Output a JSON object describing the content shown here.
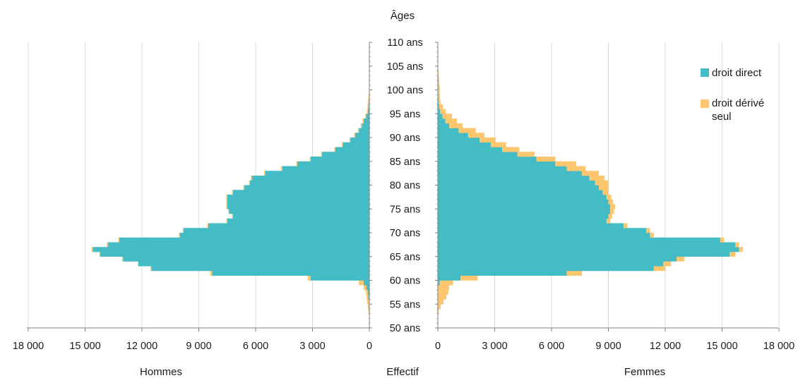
{
  "chart_data": {
    "type": "bar",
    "subtype": "population-pyramid",
    "title": "",
    "center_axis_title": "Âges",
    "x_label_center": "Effectif",
    "left_panel_label": "Hommes",
    "right_panel_label": "Femmes",
    "xlim": [
      0,
      18000
    ],
    "x_ticks": [
      0,
      3000,
      6000,
      9000,
      12000,
      15000,
      18000
    ],
    "x_tick_labels": [
      "0",
      "3 000",
      "6 000",
      "9 000",
      "12 000",
      "15 000",
      "18 000"
    ],
    "age_ticks": [
      50,
      55,
      60,
      65,
      70,
      75,
      80,
      85,
      90,
      95,
      100,
      105,
      110
    ],
    "age_tick_labels": [
      "50 ans",
      "55 ans",
      "60 ans",
      "65 ans",
      "70 ans",
      "75 ans",
      "80 ans",
      "85 ans",
      "90 ans",
      "95 ans",
      "100 ans",
      "105 ans",
      "110 ans"
    ],
    "ylim": [
      50,
      110
    ],
    "vertical_grid": true,
    "legend_position": "top-right",
    "colors": {
      "droit_direct": "#43BCC6",
      "droit_derive_seul": "#FDC66F",
      "grid": "#d9d9d9",
      "axis": "#808080"
    },
    "series": [
      {
        "name": "droit direct",
        "key": "direct"
      },
      {
        "name": "droit dérivé seul",
        "key": "derive"
      }
    ],
    "ages": [
      53,
      54,
      55,
      56,
      57,
      58,
      59,
      60,
      61,
      62,
      63,
      64,
      65,
      66,
      67,
      68,
      69,
      70,
      71,
      72,
      73,
      74,
      75,
      76,
      77,
      78,
      79,
      80,
      81,
      82,
      83,
      84,
      85,
      86,
      87,
      88,
      89,
      90,
      91,
      92,
      93,
      94,
      95,
      96,
      97,
      98,
      99,
      100,
      101,
      102,
      103
    ],
    "men_direct": [
      0,
      0,
      20,
      50,
      80,
      150,
      300,
      3100,
      8300,
      11500,
      12200,
      13000,
      14200,
      14600,
      13800,
      13200,
      10000,
      9800,
      8500,
      7500,
      7200,
      7400,
      7500,
      7500,
      7500,
      7200,
      6600,
      6300,
      6200,
      5500,
      4600,
      3800,
      3100,
      2500,
      1800,
      1400,
      1000,
      750,
      550,
      400,
      300,
      170,
      80,
      40,
      20,
      10,
      5,
      0,
      0,
      0,
      0
    ],
    "men_derive": [
      50,
      80,
      100,
      100,
      100,
      150,
      250,
      150,
      100,
      50,
      0,
      50,
      50,
      50,
      50,
      50,
      50,
      50,
      50,
      50,
      50,
      50,
      50,
      50,
      50,
      50,
      50,
      50,
      50,
      50,
      50,
      50,
      50,
      50,
      50,
      50,
      50,
      50,
      50,
      50,
      50,
      50,
      50,
      60,
      60,
      40,
      25,
      10,
      5,
      0,
      0
    ],
    "women_direct": [
      0,
      0,
      0,
      0,
      0,
      0,
      100,
      1200,
      6800,
      11400,
      11900,
      12600,
      15400,
      15900,
      15700,
      14900,
      11200,
      11000,
      9800,
      8900,
      9000,
      9100,
      9100,
      9000,
      8900,
      8700,
      8500,
      8300,
      8000,
      7600,
      6800,
      6200,
      5200,
      4200,
      3400,
      2800,
      2200,
      1600,
      1100,
      600,
      400,
      250,
      120,
      70,
      40,
      30,
      30,
      30,
      5,
      0,
      0
    ],
    "women_derive": [
      50,
      150,
      300,
      450,
      550,
      600,
      700,
      900,
      800,
      600,
      400,
      400,
      300,
      200,
      200,
      200,
      200,
      200,
      200,
      200,
      200,
      200,
      250,
      250,
      250,
      300,
      500,
      700,
      800,
      900,
      1000,
      1100,
      1000,
      900,
      900,
      800,
      850,
      850,
      900,
      700,
      600,
      500,
      300,
      200,
      100,
      80,
      70,
      70,
      70,
      60,
      40
    ]
  },
  "legend": {
    "items": [
      {
        "label": "droit direct",
        "color": "#43BCC6"
      },
      {
        "label_line1": "droit dérivé",
        "label_line2": "seul",
        "color": "#FDC66F"
      }
    ]
  }
}
